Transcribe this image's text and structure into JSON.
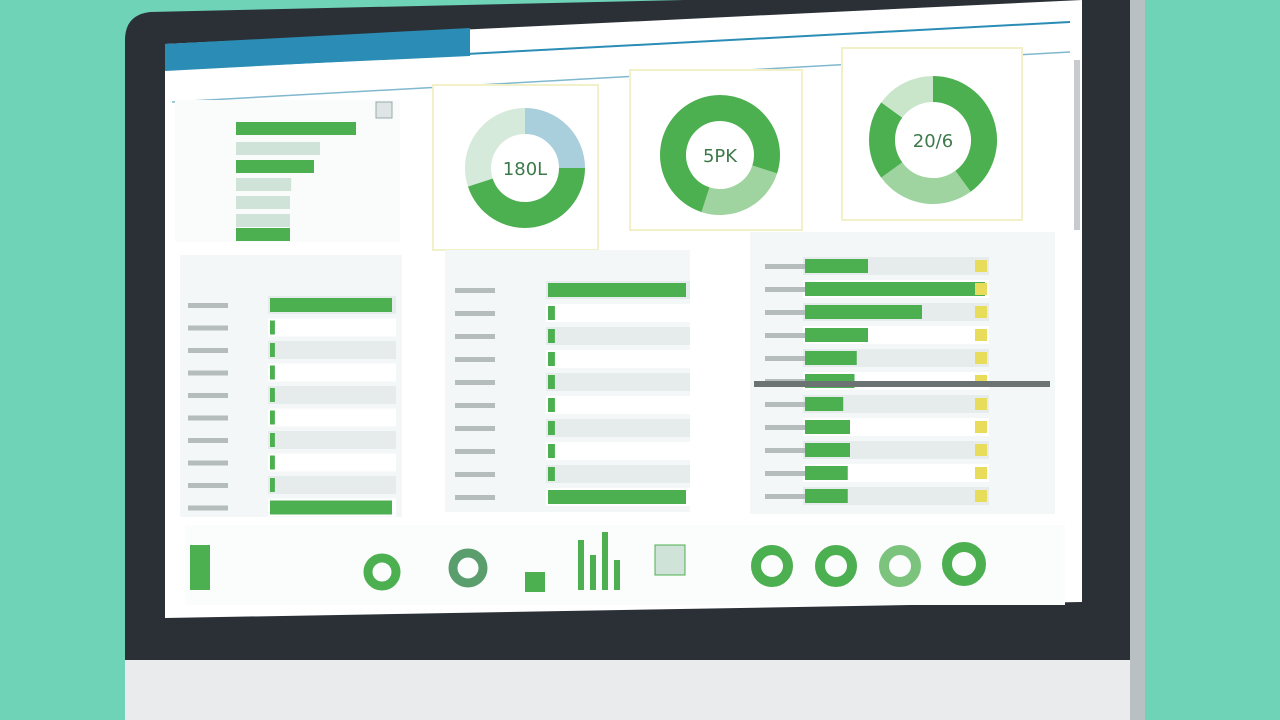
{
  "top_bars": {
    "values": [
      100,
      70,
      65,
      46,
      45,
      45,
      45
    ],
    "colors": [
      "#4caf50",
      "#cfe3d8",
      "#4caf50",
      "#cfe3d8",
      "#cfe3d8",
      "#cfe3d8",
      "#4caf50"
    ]
  },
  "donuts": [
    {
      "label": "180L",
      "segments": [
        {
          "value": 25,
          "color": "#a9cfdc"
        },
        {
          "value": 45,
          "color": "#4caf50"
        },
        {
          "value": 30,
          "color": "#d6eadb"
        }
      ]
    },
    {
      "label": "5PK",
      "segments": [
        {
          "value": 30,
          "color": "#4caf50"
        },
        {
          "value": 25,
          "color": "#9fd39f"
        },
        {
          "value": 45,
          "color": "#4caf50"
        }
      ]
    },
    {
      "label": "20/6",
      "segments": [
        {
          "value": 40,
          "color": "#4caf50"
        },
        {
          "value": 25,
          "color": "#9fd39f"
        },
        {
          "value": 20,
          "color": "#4caf50"
        },
        {
          "value": 15,
          "color": "#c9e6cb"
        }
      ]
    }
  ],
  "tables": [
    {
      "values": [
        100,
        4,
        4,
        4,
        4,
        4,
        4,
        4,
        4,
        100
      ]
    },
    {
      "values": [
        100,
        5,
        5,
        5,
        5,
        5,
        5,
        5,
        5,
        100
      ]
    },
    {
      "values": [
        28,
        80,
        52,
        28,
        23,
        22,
        17,
        20,
        20,
        19,
        19
      ]
    }
  ]
}
